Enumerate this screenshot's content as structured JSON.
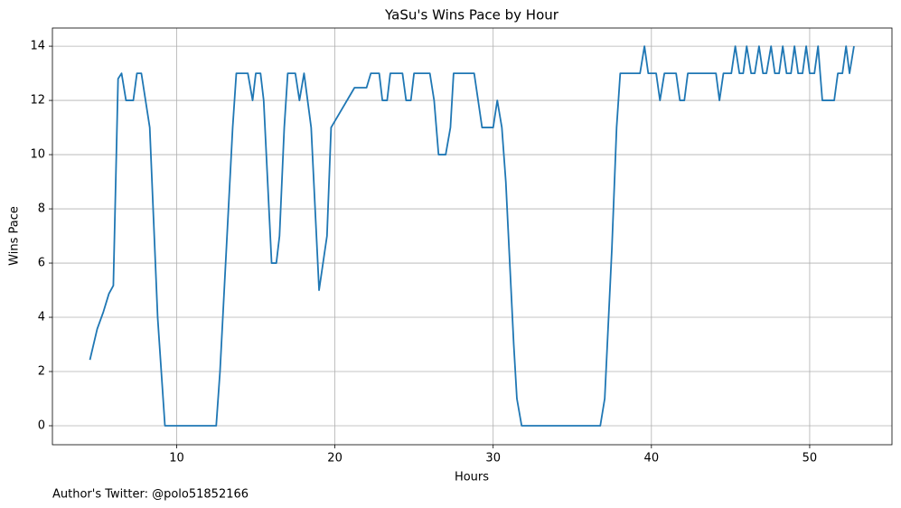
{
  "chart_data": {
    "type": "line",
    "title": "YaSu's Wins Pace by Hour",
    "x_label": "Hours",
    "y_label": "Wins Pace",
    "footer": "Author's Twitter: @polo51852166",
    "color": "#1f77b4",
    "grid": true,
    "xlim": [
      2.15,
      55.2
    ],
    "ylim": [
      -0.7,
      14.67
    ],
    "xticks": [
      10,
      20,
      30,
      40,
      50
    ],
    "yticks": [
      0,
      2,
      4,
      6,
      8,
      10,
      12,
      14
    ],
    "x": [
      4.52,
      4.98,
      5.37,
      5.72,
      6.0,
      6.3,
      6.52,
      6.8,
      7.26,
      7.49,
      7.77,
      8.3,
      8.8,
      9.26,
      12.5,
      12.74,
      13.54,
      13.77,
      14.5,
      14.8,
      15.0,
      15.3,
      15.5,
      16.0,
      16.3,
      16.5,
      16.8,
      17.02,
      17.5,
      17.76,
      18.05,
      18.5,
      19.0,
      19.5,
      19.76,
      21.24,
      22.0,
      22.27,
      22.8,
      23.0,
      23.3,
      23.5,
      24.27,
      24.5,
      24.8,
      25.0,
      26.0,
      26.27,
      26.55,
      27.0,
      27.3,
      27.5,
      28.8,
      29.3,
      30.0,
      30.26,
      30.55,
      30.8,
      31.3,
      31.5,
      31.8,
      36.77,
      37.05,
      37.5,
      37.8,
      38.03,
      39.28,
      39.56,
      39.8,
      40.3,
      40.54,
      40.82,
      41.56,
      41.8,
      42.08,
      42.3,
      44.08,
      44.3,
      44.55,
      45.05,
      45.3,
      45.56,
      45.8,
      46.02,
      46.3,
      46.53,
      46.8,
      47.05,
      47.27,
      47.56,
      47.8,
      48.07,
      48.3,
      48.54,
      48.82,
      49.04,
      49.27,
      49.55,
      49.78,
      50.0,
      50.3,
      50.53,
      50.8,
      51.55,
      51.78,
      52.07,
      52.3,
      52.52,
      52.8
    ],
    "values": [
      2.43,
      3.57,
      4.2,
      4.87,
      5.17,
      12.8,
      13,
      12,
      12,
      13,
      13,
      11,
      4,
      0,
      0,
      2,
      11,
      13,
      13,
      12,
      13,
      13,
      12,
      6,
      6,
      7,
      11,
      13,
      13,
      12,
      13,
      11,
      5,
      7,
      11,
      12.47,
      12.47,
      13,
      13,
      12,
      12,
      13,
      13,
      12,
      12,
      13,
      13,
      12,
      10,
      10,
      11,
      13,
      13,
      11,
      11,
      12,
      11,
      9,
      3,
      1,
      0,
      0,
      1,
      6.5,
      11,
      13,
      13,
      14,
      13,
      13,
      12,
      13,
      13,
      12,
      12,
      13,
      13,
      12,
      13,
      13,
      14,
      13,
      13,
      14,
      13,
      13,
      14,
      13,
      13,
      14,
      13,
      13,
      14,
      13,
      13,
      14,
      13,
      13,
      14,
      13,
      13,
      14,
      12,
      12,
      13,
      13,
      14,
      13,
      14
    ]
  }
}
